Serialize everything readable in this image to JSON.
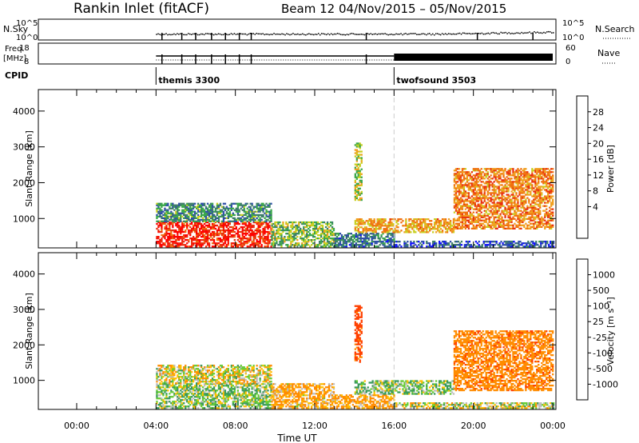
{
  "header": {
    "station": "Rankin Inlet (fitACF)",
    "beam_dates": "Beam 12  04/Nov/2015 – 05/Nov/2015"
  },
  "strip_labels": {
    "nsky": "N.Sky",
    "nsky_ticks": [
      "10^5",
      "10^0"
    ],
    "nsearch": "N.Search",
    "nsearch_ticks": [
      "10^5",
      "10^0"
    ],
    "freq_line1": "Freq.",
    "freq_line2": "[MHz]",
    "freq_ticks": [
      "18",
      "8"
    ],
    "nave": "Nave",
    "nave_ticks": [
      "60",
      "0"
    ],
    "cpid": "CPID"
  },
  "cpid_segments": [
    {
      "label": "themis 3300",
      "start_hour": 4
    },
    {
      "label": "twofsound 3503",
      "start_hour": 16
    }
  ],
  "colors": {
    "power": [
      "#1010ff",
      "#2f4fa8",
      "#3e7d6a",
      "#3aa84b",
      "#c8d020",
      "#f0a020",
      "#f07010",
      "#e83010",
      "#ff0000"
    ],
    "velocity": [
      "#ff0000",
      "#ff4000",
      "#ff8c00",
      "#ffc000",
      "#bdbdbd",
      "#66cc33",
      "#3a9a5a",
      "#3060b0",
      "#1010e0"
    ],
    "ground": "#bdbdbd"
  },
  "chart_data": [
    {
      "type": "heatmap",
      "name": "power",
      "ylabel": "Slant Range [km]",
      "colorbar_label": "Power [dB]",
      "colorbar_ticks": [
        "28",
        "24",
        "20",
        "16",
        "12",
        "8",
        "4"
      ],
      "colorbar_range": [
        0,
        32
      ],
      "x_range_hours": [
        0,
        24
      ],
      "y_range_km": [
        180,
        4600
      ],
      "yticks": [
        "1000",
        "2000",
        "3000",
        "4000"
      ],
      "dashed_line_hour": 16,
      "echo_regions": [
        {
          "t0": 4.0,
          "t1": 9.8,
          "r0": 200,
          "r1": 900,
          "level": 28
        },
        {
          "t0": 4.0,
          "t1": 9.8,
          "r0": 900,
          "r1": 1400,
          "level": 10
        },
        {
          "t0": 9.8,
          "t1": 13.0,
          "r0": 200,
          "r1": 900,
          "level": 14
        },
        {
          "t0": 13.0,
          "t1": 16.0,
          "r0": 200,
          "r1": 600,
          "level": 8
        },
        {
          "t0": 14.0,
          "t1": 14.4,
          "r0": 1500,
          "r1": 3100,
          "level": 16
        },
        {
          "t0": 14.0,
          "t1": 19.0,
          "r0": 600,
          "r1": 1000,
          "level": 20
        },
        {
          "t0": 16.0,
          "t1": 24.0,
          "r0": 200,
          "r1": 350,
          "level": 6
        },
        {
          "t0": 19.0,
          "t1": 24.0,
          "r0": 700,
          "r1": 2400,
          "level": 22
        }
      ]
    },
    {
      "type": "heatmap",
      "name": "velocity",
      "ylabel": "Slant Range [km]",
      "colorbar_label": "Velocity [m s⁻¹]",
      "colorbar_ticks": [
        "1000",
        "500",
        "100",
        "25",
        "-25",
        "-100",
        "-500",
        "-1000"
      ],
      "colorbar_range": [
        -1000,
        1000
      ],
      "x_range_hours": [
        0,
        24
      ],
      "y_range_km": [
        180,
        4600
      ],
      "yticks": [
        "1000",
        "2000",
        "3000",
        "4000"
      ],
      "xticks": [
        "00:00",
        "04:00",
        "08:00",
        "12:00",
        "16:00",
        "20:00",
        "00:00"
      ],
      "xlabel": "Time UT",
      "dashed_line_hour": 16,
      "echo_regions": [
        {
          "t0": 4.0,
          "t1": 9.8,
          "r0": 200,
          "r1": 900,
          "level": 60
        },
        {
          "t0": 4.0,
          "t1": 9.8,
          "r0": 900,
          "r1": 1400,
          "level": -20
        },
        {
          "t0": 9.8,
          "t1": 13.0,
          "r0": 200,
          "r1": 900,
          "level": -120
        },
        {
          "t0": 13.0,
          "t1": 16.0,
          "r0": 200,
          "r1": 600,
          "level": -150
        },
        {
          "t0": 14.0,
          "t1": 14.4,
          "r0": 1500,
          "r1": 3100,
          "level": -600
        },
        {
          "t0": 14.0,
          "t1": 19.0,
          "r0": 600,
          "r1": 1000,
          "level": 80
        },
        {
          "t0": 16.0,
          "t1": 24.0,
          "r0": 200,
          "r1": 350,
          "level": 0
        },
        {
          "t0": 19.0,
          "t1": 24.0,
          "r0": 700,
          "r1": 2400,
          "level": -400
        }
      ]
    }
  ]
}
